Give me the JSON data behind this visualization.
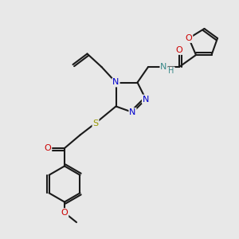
{
  "bg_color": "#e8e8e8",
  "bond_color": "#1a1a1a",
  "bond_width": 1.5,
  "figsize": [
    3.0,
    3.0
  ],
  "dpi": 100,
  "xlim": [
    0,
    10
  ],
  "ylim": [
    0,
    10
  ],
  "N_color": "#0000cc",
  "O_color": "#cc0000",
  "S_color": "#999900",
  "H_color": "#3a8a8a",
  "C_color": "#1a1a1a"
}
